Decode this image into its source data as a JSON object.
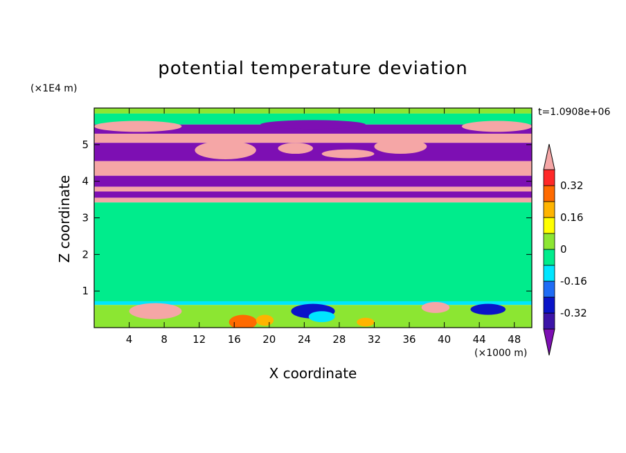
{
  "chart_data": {
    "type": "heatmap",
    "title": "potential temperature deviation",
    "xlabel": "X coordinate",
    "ylabel": "Z coordinate",
    "x_unit": "(×1000 m)",
    "y_unit": "(×1E4 m)",
    "time_label": "t=1.0908e+06",
    "xlim": [
      0,
      50
    ],
    "ylim": [
      0,
      6
    ],
    "x_ticks": [
      "4",
      "8",
      "12",
      "16",
      "20",
      "24",
      "28",
      "32",
      "36",
      "40",
      "44",
      "48"
    ],
    "x_tick_values": [
      4,
      8,
      12,
      16,
      20,
      24,
      28,
      32,
      36,
      40,
      44,
      48
    ],
    "y_ticks": [
      "1",
      "2",
      "3",
      "4",
      "5"
    ],
    "y_tick_values": [
      1,
      2,
      3,
      4,
      5
    ],
    "colorbar": {
      "labels": [
        "0.32",
        "0.16",
        "0",
        "-0.16",
        "-0.32"
      ],
      "label_values": [
        0.32,
        0.16,
        0,
        -0.16,
        -0.32
      ],
      "levels": [
        -0.4,
        -0.32,
        -0.24,
        -0.16,
        -0.08,
        0,
        0.08,
        0.16,
        0.24,
        0.32,
        0.4
      ],
      "colors": [
        "#7d0fb3",
        "#3c14a8",
        "#0a14c8",
        "#1f6cf5",
        "#00e6ff",
        "#00ec8c",
        "#8ce632",
        "#ffff00",
        "#ffb400",
        "#ff6a00",
        "#ff2828",
        "#f5a6a6"
      ],
      "extend": "both"
    },
    "bands": [
      {
        "z0": 5.85,
        "z1": 6.0,
        "value": 0.04
      },
      {
        "z0": 5.55,
        "z1": 5.85,
        "value": -0.02
      },
      {
        "z0": 5.3,
        "z1": 5.55,
        "value": -0.45
      },
      {
        "z0": 5.05,
        "z1": 5.3,
        "value": 0.45
      },
      {
        "z0": 4.55,
        "z1": 5.05,
        "value": -0.45
      },
      {
        "z0": 4.15,
        "z1": 4.55,
        "value": 0.45
      },
      {
        "z0": 3.85,
        "z1": 4.15,
        "value": -0.45
      },
      {
        "z0": 3.72,
        "z1": 3.85,
        "value": 0.45
      },
      {
        "z0": 3.55,
        "z1": 3.72,
        "value": -0.45
      },
      {
        "z0": 3.42,
        "z1": 3.55,
        "value": 0.45
      },
      {
        "z0": 0.72,
        "z1": 3.42,
        "value": -0.02
      },
      {
        "z0": 0.62,
        "z1": 0.72,
        "value": -0.1
      },
      {
        "z0": 0.0,
        "z1": 0.62,
        "value": 0.04
      }
    ],
    "patches": [
      {
        "x": 7,
        "z": 0.45,
        "rx": 3.0,
        "rz": 0.22,
        "value": 0.45
      },
      {
        "x": 17,
        "z": 0.15,
        "rx": 1.6,
        "rz": 0.2,
        "value": 0.3
      },
      {
        "x": 19.5,
        "z": 0.2,
        "rx": 1.0,
        "rz": 0.15,
        "value": 0.2
      },
      {
        "x": 25,
        "z": 0.45,
        "rx": 2.5,
        "rz": 0.2,
        "value": -0.3
      },
      {
        "x": 26,
        "z": 0.3,
        "rx": 1.5,
        "rz": 0.15,
        "value": -0.16
      },
      {
        "x": 31,
        "z": 0.15,
        "rx": 1.0,
        "rz": 0.12,
        "value": 0.2
      },
      {
        "x": 39,
        "z": 0.55,
        "rx": 1.6,
        "rz": 0.15,
        "value": 0.45
      },
      {
        "x": 45,
        "z": 0.5,
        "rx": 2.0,
        "rz": 0.15,
        "value": -0.3
      },
      {
        "x": 5,
        "z": 5.5,
        "rx": 5.0,
        "rz": 0.15,
        "value": 0.45
      },
      {
        "x": 46,
        "z": 5.5,
        "rx": 4.0,
        "rz": 0.15,
        "value": 0.45
      },
      {
        "x": 15,
        "z": 4.85,
        "rx": 3.5,
        "rz": 0.25,
        "value": 0.45
      },
      {
        "x": 23,
        "z": 4.9,
        "rx": 2.0,
        "rz": 0.15,
        "value": 0.45
      },
      {
        "x": 29,
        "z": 4.75,
        "rx": 3.0,
        "rz": 0.12,
        "value": 0.45
      },
      {
        "x": 35,
        "z": 4.95,
        "rx": 3.0,
        "rz": 0.2,
        "value": 0.45
      },
      {
        "x": 25,
        "z": 5.55,
        "rx": 6.0,
        "rz": 0.12,
        "value": -0.45
      }
    ]
  }
}
